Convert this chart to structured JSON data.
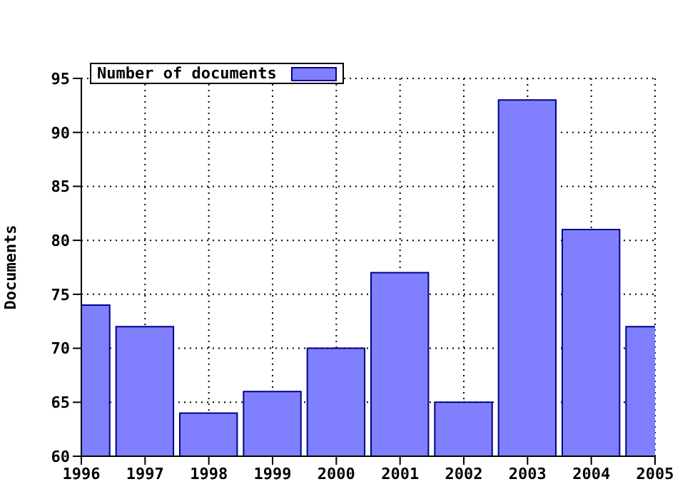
{
  "chart_data": {
    "type": "bar",
    "ylabel": "Documents",
    "x": [
      1996,
      1997,
      1998,
      1999,
      2000,
      2001,
      2002,
      2003,
      2004,
      2005
    ],
    "series": [
      {
        "name": "Number of documents",
        "color": "#8080ff",
        "values": [
          74,
          72,
          64,
          66,
          70,
          77,
          65,
          93,
          81,
          72
        ]
      }
    ],
    "xlim": [
      1996,
      2005
    ],
    "xticks": [
      1996,
      1997,
      1998,
      1999,
      2000,
      2001,
      2002,
      2003,
      2004,
      2005
    ],
    "ylim": [
      60,
      95
    ],
    "yticks": [
      60,
      65,
      70,
      75,
      80,
      85,
      90,
      95
    ],
    "grid": true,
    "legend": "top left"
  }
}
